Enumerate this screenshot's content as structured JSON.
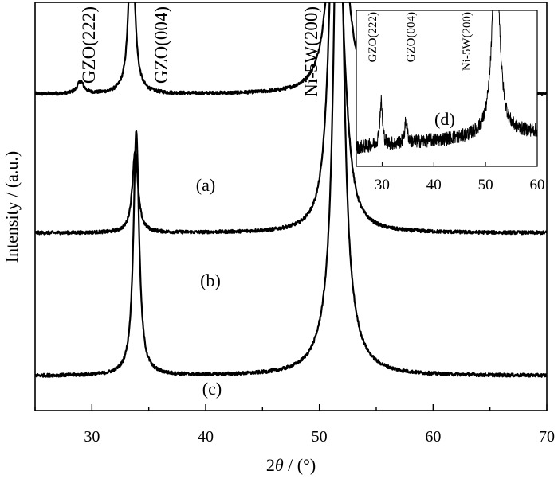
{
  "chart_data": [
    {
      "type": "line",
      "xlabel_prefix": "2",
      "xlabel_symbol": "θ",
      "xlabel_suffix": " / (°)",
      "ylabel": "Intensity / (a.u.)",
      "xlim": [
        25,
        70
      ],
      "xticks": [
        30,
        40,
        50,
        60,
        70
      ],
      "yticks_labeled": false,
      "grid": false,
      "peak_labels": [
        {
          "text": "GZO(222)",
          "x": 29.2
        },
        {
          "text": "GZO(004)",
          "x": 34.0
        },
        {
          "text": "Ni-5W(200)",
          "x": 51.6
        }
      ],
      "series": [
        {
          "name": "(a)",
          "baseline": 0.775,
          "peaks": [
            {
              "x": 29.0,
              "height": 0.03,
              "width": 0.35
            },
            {
              "x": 33.5,
              "height": 0.46,
              "width": 0.28
            },
            {
              "x": 51.0,
              "height": 0.12,
              "width": 0.8
            },
            {
              "x": 51.6,
              "height": 1.2,
              "width": 0.35
            },
            {
              "x": 52.2,
              "height": 0.12,
              "width": 0.8
            }
          ]
        },
        {
          "name": "(b)",
          "baseline": 0.435,
          "peaks": [
            {
              "x": 33.8,
              "height": 0.2,
              "width": 0.3
            },
            {
              "x": 51.0,
              "height": 0.18,
              "width": 0.6
            },
            {
              "x": 51.5,
              "height": 1.5,
              "width": 0.35
            },
            {
              "x": 52.3,
              "height": 0.12,
              "width": 0.6
            }
          ]
        },
        {
          "name": "(c)",
          "baseline": 0.085,
          "peaks": [
            {
              "x": 33.9,
              "height": 0.6,
              "width": 0.3
            },
            {
              "x": 51.7,
              "height": 1.5,
              "width": 0.45
            },
            {
              "x": 50.8,
              "height": 0.04,
              "width": 1.2
            },
            {
              "x": 52.6,
              "height": 0.04,
              "width": 1.2
            }
          ]
        }
      ]
    },
    {
      "type": "line",
      "inset": true,
      "panel_label": "(d)",
      "xlim": [
        25,
        60
      ],
      "xticks": [
        30,
        40,
        50,
        60
      ],
      "peak_labels": [
        {
          "text": "GZO(222)",
          "x": 29.8
        },
        {
          "text": "GZO(004)",
          "x": 34.6
        },
        {
          "text": "Ni-5W(200)",
          "x": 49.8
        }
      ],
      "series": [
        {
          "name": "(d)",
          "baseline": 0.18,
          "peaks": [
            {
              "x": 29.8,
              "height": 0.28,
              "width": 0.3
            },
            {
              "x": 34.6,
              "height": 0.14,
              "width": 0.3
            },
            {
              "x": 52.0,
              "height": 1.3,
              "width": 0.8
            }
          ]
        }
      ]
    }
  ]
}
